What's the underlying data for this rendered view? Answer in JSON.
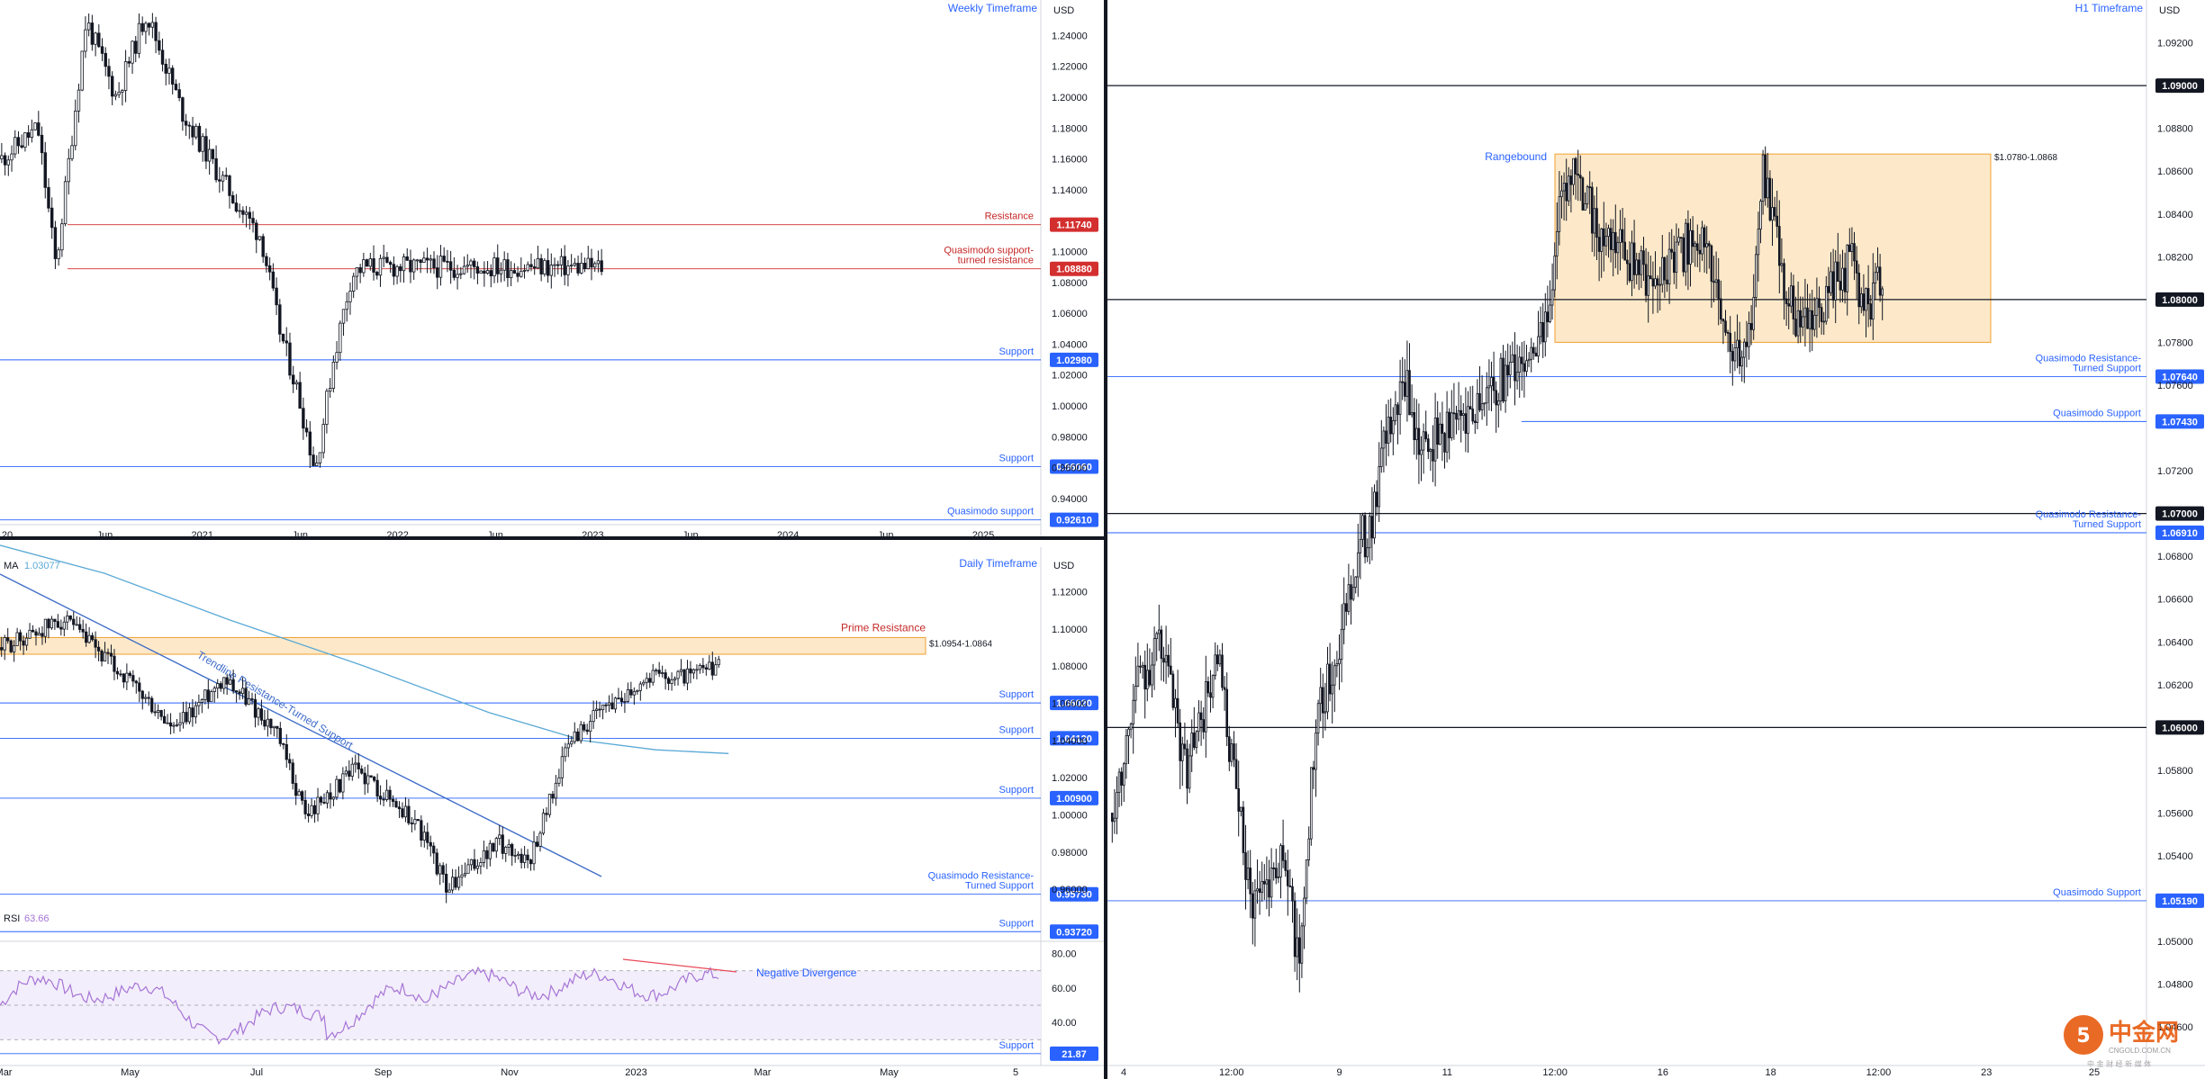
{
  "colors": {
    "divider": "#131722",
    "resistance": "#d32f2f",
    "support": "#2962ff",
    "black_level": "#131722",
    "zone_fill": "#fde9c9",
    "zone_border": "#f0a030",
    "ma": "#5aa9d6",
    "trendline": "#3f6cc8",
    "rsi": "#a675d6",
    "rsi_fill": "#f3eefb",
    "divergence": "#e84b5a",
    "axis_text": "#131722",
    "label_blue": "#2962ff",
    "label_red": "#c62828"
  },
  "chart_data": [
    {
      "type": "candlestick",
      "title": "Weekly Timeframe",
      "currency": "USD",
      "ylim": [
        0.923,
        1.263
      ],
      "y_ticks": [
        "1.24000",
        "1.22000",
        "1.20000",
        "1.18000",
        "1.16000",
        "1.14000",
        "1.10000",
        "1.08000",
        "1.06000",
        "1.04000",
        "1.02000",
        "1.00000",
        "0.98000",
        "0.96000",
        "0.94000"
      ],
      "x_ticks": [
        "20",
        "Jun",
        "2021",
        "Jun",
        "2022",
        "Jun",
        "2023",
        "Jun",
        "2024",
        "Jun",
        "2025"
      ],
      "levels": [
        {
          "value": 1.1174,
          "price_label": "1.11740",
          "kind": "resistance",
          "label": "Resistance"
        },
        {
          "value": 1.0888,
          "price_label": "1.08880",
          "kind": "resistance",
          "label": "Quasimodo support-\nturned resistance"
        },
        {
          "value": 1.0298,
          "price_label": "1.02980",
          "kind": "support",
          "label": "Support"
        },
        {
          "value": 0.9606,
          "price_label": "0.96060",
          "kind": "support",
          "label": "Support"
        },
        {
          "value": 0.9261,
          "price_label": "0.92610",
          "kind": "support",
          "label": "Quasimodo support"
        }
      ],
      "path": [
        [
          0,
          1.16
        ],
        [
          0.06,
          1.18
        ],
        [
          0.09,
          1.09
        ],
        [
          0.14,
          1.25
        ],
        [
          0.19,
          1.2
        ],
        [
          0.24,
          1.255
        ],
        [
          0.3,
          1.19
        ],
        [
          0.36,
          1.15
        ],
        [
          0.4,
          1.125
        ],
        [
          0.43,
          1.11
        ],
        [
          0.46,
          1.05
        ],
        [
          0.49,
          1.01
        ],
        [
          0.52,
          0.958
        ],
        [
          0.55,
          1.03
        ],
        [
          0.58,
          1.085
        ],
        [
          0.6,
          1.09
        ]
      ]
    },
    {
      "type": "candlestick",
      "title": "Daily Timeframe",
      "currency": "USD",
      "ylim": [
        0.932,
        1.144
      ],
      "y_ticks": [
        "1.12000",
        "1.10000",
        "1.08000",
        "1.06000",
        "1.04000",
        "1.02000",
        "1.00000",
        "0.98000",
        "0.96000"
      ],
      "x_ticks": [
        "Mar",
        "May",
        "Jul",
        "Sep",
        "Nov",
        "2023",
        "Mar",
        "May",
        "5"
      ],
      "indicator_label": "MA",
      "indicator_value": "1.03077",
      "zone": {
        "low": 1.0864,
        "high": 1.0954,
        "label": "$1.0954-1.0864",
        "title": "Prime Resistance"
      },
      "trendline_label": "Trendline Resistance-Turned Support",
      "levels": [
        {
          "value": 1.0602,
          "price_label": "1.06020",
          "kind": "support",
          "label": "Support"
        },
        {
          "value": 1.0412,
          "price_label": "1.04120",
          "kind": "support",
          "label": "Support"
        },
        {
          "value": 1.009,
          "price_label": "1.00900",
          "kind": "support",
          "label": "Support"
        },
        {
          "value": 0.9573,
          "price_label": "0.95730",
          "kind": "support",
          "label": "Quasimodo Resistance-\nTurned Support"
        },
        {
          "value": 0.9372,
          "price_label": "0.93720",
          "kind": "support",
          "label": "Support"
        }
      ],
      "path": [
        [
          0,
          1.09
        ],
        [
          0.06,
          1.105
        ],
        [
          0.12,
          1.075
        ],
        [
          0.17,
          1.045
        ],
        [
          0.22,
          1.075
        ],
        [
          0.27,
          1.045
        ],
        [
          0.3,
          1.0
        ],
        [
          0.35,
          1.025
        ],
        [
          0.41,
          0.995
        ],
        [
          0.44,
          0.96
        ],
        [
          0.49,
          0.985
        ],
        [
          0.52,
          0.975
        ],
        [
          0.56,
          1.04
        ],
        [
          0.6,
          1.06
        ],
        [
          0.64,
          1.075
        ],
        [
          0.68,
          1.075
        ],
        [
          0.71,
          1.08
        ]
      ],
      "ma_path": [
        [
          0,
          1.145
        ],
        [
          0.1,
          1.13
        ],
        [
          0.22,
          1.105
        ],
        [
          0.35,
          1.08
        ],
        [
          0.47,
          1.055
        ],
        [
          0.56,
          1.04
        ],
        [
          0.63,
          1.035
        ],
        [
          0.7,
          1.033
        ]
      ]
    },
    {
      "type": "line",
      "title": "RSI",
      "indicator_label": "RSI",
      "indicator_value": "63.66",
      "ylim": [
        15,
        85
      ],
      "y_ticks": [
        "80.00",
        "60.00",
        "40.00"
      ],
      "bands": [
        70,
        50,
        30
      ],
      "annotation": "Negative Divergence",
      "levels": [
        {
          "value": 21.87,
          "price_label": "21.87",
          "kind": "support",
          "label": "Support"
        }
      ]
    },
    {
      "type": "candlestick",
      "title": "H1 Timeframe",
      "currency": "USD",
      "ylim": [
        1.0442,
        1.094
      ],
      "y_ticks": [
        "1.09200",
        "1.08800",
        "1.08600",
        "1.08400",
        "1.08200",
        "1.07800",
        "1.07600",
        "1.07200",
        "1.06800",
        "1.06600",
        "1.06400",
        "1.06200",
        "1.05800",
        "1.05600",
        "1.05400",
        "1.05000",
        "1.04800",
        "1.04600"
      ],
      "x_ticks": [
        "4",
        "12:00",
        "9",
        "11",
        "12:00",
        "16",
        "18",
        "12:00",
        "23",
        "25"
      ],
      "zone": {
        "low": 1.078,
        "high": 1.0868,
        "label": "$1.0780-1.0868",
        "title": "Rangebound"
      },
      "levels": [
        {
          "value": 1.09,
          "price_label": "1.09000",
          "kind": "black",
          "label": ""
        },
        {
          "value": 1.08,
          "price_label": "1.08000",
          "kind": "black",
          "label": ""
        },
        {
          "value": 1.0764,
          "price_label": "1.07640",
          "kind": "support",
          "label": "Quasimodo Resistance-\nTurned Support"
        },
        {
          "value": 1.0743,
          "price_label": "1.07430",
          "kind": "support",
          "label": "Quasimodo Support"
        },
        {
          "value": 1.07,
          "price_label": "1.07000",
          "kind": "black",
          "label": ""
        },
        {
          "value": 1.0691,
          "price_label": "1.06910",
          "kind": "support",
          "label": "Quasimodo Resistance-\nTurned Support"
        },
        {
          "value": 1.06,
          "price_label": "1.06000",
          "kind": "black",
          "label": ""
        },
        {
          "value": 1.0519,
          "price_label": "1.05190",
          "kind": "support",
          "label": "Quasimodo Support"
        }
      ],
      "path": [
        [
          0,
          1.056
        ],
        [
          0.03,
          1.062
        ],
        [
          0.06,
          1.064
        ],
        [
          0.09,
          1.058
        ],
        [
          0.13,
          1.063
        ],
        [
          0.17,
          1.052
        ],
        [
          0.21,
          1.054
        ],
        [
          0.23,
          1.049
        ],
        [
          0.25,
          1.06
        ],
        [
          0.28,
          1.064
        ],
        [
          0.3,
          1.068
        ],
        [
          0.32,
          1.07
        ],
        [
          0.34,
          1.074
        ],
        [
          0.36,
          1.076
        ],
        [
          0.38,
          1.073
        ],
        [
          0.41,
          1.074
        ],
        [
          0.44,
          1.075
        ],
        [
          0.47,
          1.076
        ],
        [
          0.5,
          1.077
        ],
        [
          0.53,
          1.078
        ],
        [
          0.55,
          1.084
        ],
        [
          0.57,
          1.086
        ],
        [
          0.6,
          1.083
        ],
        [
          0.63,
          1.082
        ],
        [
          0.66,
          1.081
        ],
        [
          0.69,
          1.082
        ],
        [
          0.72,
          1.083
        ],
        [
          0.74,
          1.081
        ],
        [
          0.76,
          1.078
        ],
        [
          0.78,
          1.077
        ],
        [
          0.8,
          1.086
        ],
        [
          0.82,
          1.082
        ],
        [
          0.84,
          1.079
        ],
        [
          0.86,
          1.079
        ],
        [
          0.88,
          1.08
        ],
        [
          0.91,
          1.082
        ],
        [
          0.93,
          1.079
        ],
        [
          0.95,
          1.082
        ]
      ]
    }
  ],
  "watermark": {
    "brand": "中金网",
    "sub": "CNGOLD.COM.CN",
    "tag": "中 金 财 经 新 媒 体"
  }
}
